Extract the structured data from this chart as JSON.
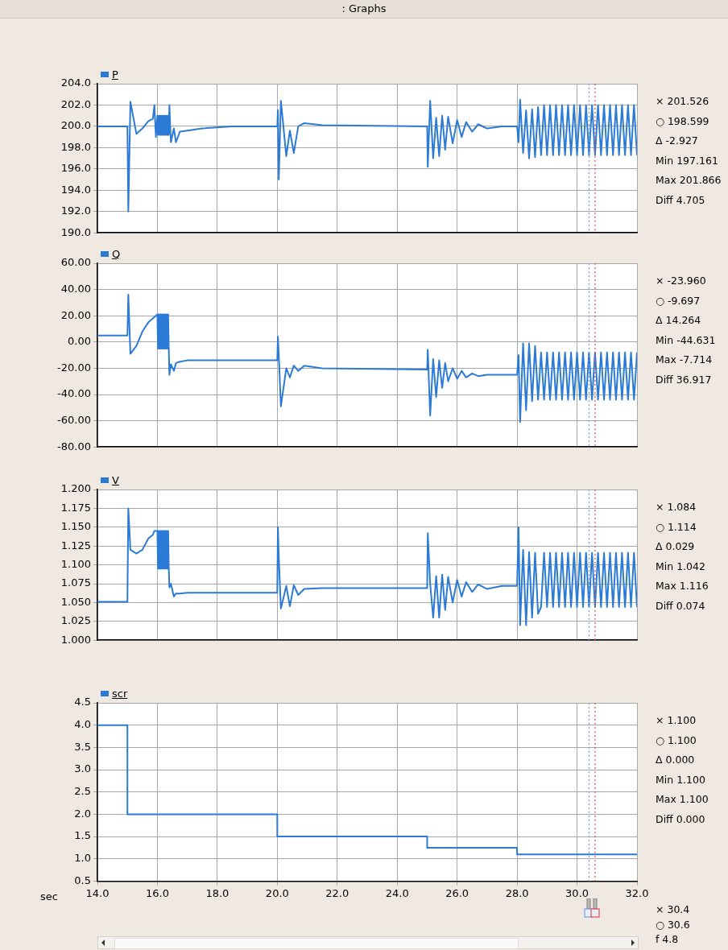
{
  "chart_data": [
    {
      "type": "line",
      "title": ": Graphs",
      "x": [
        14,
        15,
        15.03,
        15.1,
        15.3,
        15.5,
        15.7,
        15.85,
        15.9,
        15.95,
        16,
        16.02,
        16.04,
        16.06,
        16.08,
        16.1,
        16.12,
        16.14,
        16.16,
        16.18,
        16.2,
        16.22,
        16.24,
        16.26,
        16.28,
        16.3,
        16.32,
        16.34,
        16.36,
        16.38,
        16.4,
        16.45,
        16.55,
        16.62,
        16.75,
        17,
        17.5,
        18.5,
        20,
        20.02,
        20.05,
        20.12,
        20.3,
        20.42,
        20.55,
        20.7,
        20.9,
        21.5,
        25,
        25.02,
        25.1,
        25.2,
        25.3,
        25.4,
        25.5,
        25.6,
        25.7,
        25.85,
        26,
        26.15,
        26.3,
        26.5,
        26.7,
        27,
        27.5,
        28,
        28.05,
        28.1,
        28.2,
        28.3,
        28.4,
        28.5,
        28.6,
        28.7,
        28.8,
        28.9,
        29,
        29.1,
        29.2,
        29.3,
        29.4,
        29.5,
        29.6,
        29.7,
        29.8,
        29.9,
        30,
        30.1,
        30.2,
        30.3,
        30.4,
        30.5,
        30.6,
        30.7,
        30.8,
        30.9,
        31,
        31.1,
        31.2,
        31.3,
        31.4,
        31.5,
        31.6,
        31.7,
        31.8,
        31.9,
        32
      ],
      "series": [
        {
          "name": "P",
          "color": "#2b7bd6",
          "values": [
            200,
            200,
            192,
            202.3,
            199.3,
            199.8,
            200.5,
            200.7,
            202,
            199,
            201,
            199.2,
            201,
            199.2,
            201,
            199.2,
            201,
            199.2,
            201,
            199.2,
            201,
            199.2,
            201,
            199.2,
            201,
            199.2,
            201,
            199.2,
            201,
            199.2,
            202,
            198.5,
            199.8,
            198.5,
            199.5,
            199.6,
            199.8,
            200,
            200,
            201.5,
            195,
            202.4,
            197.2,
            199.6,
            197.5,
            200,
            200.3,
            200.1,
            200,
            196.2,
            202.4,
            197,
            200.8,
            197.2,
            201,
            197.8,
            200.9,
            198.4,
            200.6,
            199,
            200.4,
            199.5,
            200.2,
            199.8,
            200,
            200,
            198.5,
            202.5,
            197.5,
            201.5,
            197,
            201.6,
            197.1,
            201.8,
            197.3,
            202,
            197.3,
            202,
            197.3,
            202,
            197.3,
            202,
            197.3,
            202,
            197.3,
            202,
            197.3,
            202,
            197.3,
            202,
            197.3,
            202,
            197.3,
            202,
            197.3,
            202,
            197.3,
            202,
            197.3,
            202,
            197.3,
            202,
            197.3,
            202,
            197.3,
            202,
            197.3
          ]
        }
      ],
      "xlim": [
        14,
        32
      ],
      "ylim": [
        190,
        204
      ],
      "yticks": [
        {
          "value": 190,
          "label": "190.0"
        },
        {
          "value": 192,
          "label": "192.0"
        },
        {
          "value": 194,
          "label": "194.0"
        },
        {
          "value": 196,
          "label": "196.0"
        },
        {
          "value": 198,
          "label": "198.0"
        },
        {
          "value": 200,
          "label": "200.0"
        },
        {
          "value": 202,
          "label": "202.0"
        },
        {
          "value": 204,
          "label": "204.0"
        }
      ],
      "tick_labels": "y",
      "grid": true,
      "legend": "top left",
      "marker": "none",
      "line_style": "solid",
      "ref_lines": [
        {
          "axis": "x",
          "value": 30.4,
          "color": "#7a9cf0",
          "line_style": "dotted"
        },
        {
          "axis": "x",
          "value": 30.6,
          "color": "#e05050",
          "line_style": "dotted"
        }
      ],
      "xticks": [
        14,
        16,
        18,
        20,
        22,
        24,
        26,
        28,
        30,
        32
      ],
      "annotations": [
        "× 201.526",
        "○ 198.599",
        "Δ -2.927",
        "Min 197.161",
        "Max 201.866",
        "Diff 4.705"
      ]
    },
    {
      "type": "line",
      "x": [
        14,
        15,
        15.03,
        15.1,
        15.3,
        15.5,
        15.7,
        15.85,
        15.9,
        15.95,
        16,
        16.02,
        16.04,
        16.06,
        16.08,
        16.1,
        16.12,
        16.14,
        16.16,
        16.18,
        16.2,
        16.22,
        16.24,
        16.26,
        16.28,
        16.3,
        16.32,
        16.34,
        16.36,
        16.38,
        16.4,
        16.45,
        16.55,
        16.62,
        16.75,
        17,
        17.5,
        18.5,
        20,
        20.02,
        20.05,
        20.12,
        20.3,
        20.42,
        20.55,
        20.7,
        20.9,
        21.5,
        25,
        25.02,
        25.1,
        25.2,
        25.3,
        25.4,
        25.5,
        25.6,
        25.7,
        25.85,
        26,
        26.15,
        26.3,
        26.5,
        26.7,
        27,
        27.5,
        28,
        28.05,
        28.1,
        28.2,
        28.3,
        28.4,
        28.5,
        28.6,
        28.7,
        28.8,
        28.9,
        29,
        29.1,
        29.2,
        29.3,
        29.4,
        29.5,
        29.6,
        29.7,
        29.8,
        29.9,
        30,
        30.1,
        30.2,
        30.3,
        30.4,
        30.5,
        30.6,
        30.7,
        30.8,
        30.9,
        31,
        31.1,
        31.2,
        31.3,
        31.4,
        31.5,
        31.6,
        31.7,
        31.8,
        31.9,
        32
      ],
      "series": [
        {
          "name": "Q",
          "color": "#2b7bd6",
          "values": [
            5,
            5,
            36,
            -9,
            -3,
            8,
            15,
            18,
            19,
            20,
            21,
            -5,
            21,
            -5,
            21,
            -5,
            21,
            -5,
            21,
            -5,
            21,
            -5,
            21,
            -5,
            21,
            -5,
            21,
            -5,
            21,
            -5,
            -25,
            -17,
            -22,
            -16,
            -15,
            -14,
            -14,
            -14,
            -14,
            4,
            -10,
            -49,
            -20,
            -27,
            -18,
            -22,
            -18,
            -20,
            -21,
            -6,
            -56,
            -13,
            -42,
            -14,
            -35,
            -16,
            -30,
            -20,
            -28,
            -22,
            -27,
            -24,
            -26,
            -25,
            -25,
            -25,
            -10,
            -61,
            -1,
            -52,
            -1,
            -45,
            -3,
            -44,
            -8,
            -44,
            -8,
            -44,
            -8,
            -44,
            -8,
            -44,
            -8,
            -44,
            -8,
            -44,
            -8,
            -44,
            -8,
            -44,
            -8,
            -44,
            -8,
            -44,
            -8,
            -44,
            -8,
            -44,
            -8,
            -44,
            -8,
            -44,
            -8,
            -44,
            -8,
            -44,
            -8
          ]
        }
      ],
      "xlim": [
        14,
        32
      ],
      "xticks": [
        14,
        16,
        18,
        20,
        22,
        24,
        26,
        28,
        30,
        32
      ],
      "ylim": [
        -80,
        60
      ],
      "yticks": [
        {
          "value": -80,
          "label": "-80.00"
        },
        {
          "value": -60,
          "label": "-60.00"
        },
        {
          "value": -40,
          "label": "-40.00"
        },
        {
          "value": -20,
          "label": "-20.00"
        },
        {
          "value": 0,
          "label": "0.00"
        },
        {
          "value": 20,
          "label": "20.00"
        },
        {
          "value": 40,
          "label": "40.00"
        },
        {
          "value": 60,
          "label": "60.00"
        }
      ],
      "tick_labels": "y",
      "grid": true,
      "legend": "top left",
      "marker": "none",
      "line_style": "solid",
      "ref_lines": [
        {
          "axis": "x",
          "value": 30.4,
          "color": "#7a9cf0",
          "line_style": "dotted"
        },
        {
          "axis": "x",
          "value": 30.6,
          "color": "#e05050",
          "line_style": "dotted"
        }
      ],
      "annotations": [
        "× -23.960",
        "○ -9.697",
        "Δ 14.264",
        "Min -44.631",
        "Max -7.714",
        "Diff 36.917"
      ]
    },
    {
      "type": "line",
      "x": [
        14,
        15,
        15.03,
        15.1,
        15.3,
        15.5,
        15.7,
        15.85,
        15.9,
        15.95,
        16,
        16.02,
        16.04,
        16.06,
        16.08,
        16.1,
        16.12,
        16.14,
        16.16,
        16.18,
        16.2,
        16.22,
        16.24,
        16.26,
        16.28,
        16.3,
        16.32,
        16.34,
        16.36,
        16.38,
        16.4,
        16.45,
        16.55,
        16.62,
        16.75,
        17,
        17.5,
        18.5,
        20,
        20.02,
        20.05,
        20.12,
        20.3,
        20.42,
        20.55,
        20.7,
        20.9,
        21.5,
        25,
        25.02,
        25.1,
        25.2,
        25.3,
        25.4,
        25.5,
        25.6,
        25.7,
        25.85,
        26,
        26.15,
        26.3,
        26.5,
        26.7,
        27,
        27.5,
        28,
        28.05,
        28.1,
        28.2,
        28.3,
        28.4,
        28.5,
        28.6,
        28.7,
        28.8,
        28.9,
        29,
        29.1,
        29.2,
        29.3,
        29.4,
        29.5,
        29.6,
        29.7,
        29.8,
        29.9,
        30,
        30.1,
        30.2,
        30.3,
        30.4,
        30.5,
        30.6,
        30.7,
        30.8,
        30.9,
        31,
        31.1,
        31.2,
        31.3,
        31.4,
        31.5,
        31.6,
        31.7,
        31.8,
        31.9,
        32
      ],
      "series": [
        {
          "name": "V",
          "color": "#2b7bd6",
          "values": [
            1.051,
            1.051,
            1.175,
            1.12,
            1.115,
            1.12,
            1.135,
            1.14,
            1.145,
            1.145,
            1.145,
            1.095,
            1.145,
            1.095,
            1.145,
            1.095,
            1.145,
            1.095,
            1.145,
            1.095,
            1.145,
            1.095,
            1.145,
            1.095,
            1.145,
            1.095,
            1.145,
            1.095,
            1.145,
            1.095,
            1.07,
            1.075,
            1.058,
            1.062,
            1.062,
            1.063,
            1.063,
            1.063,
            1.063,
            1.15,
            1.11,
            1.042,
            1.072,
            1.045,
            1.073,
            1.06,
            1.068,
            1.069,
            1.069,
            1.142,
            1.075,
            1.03,
            1.085,
            1.03,
            1.087,
            1.04,
            1.084,
            1.05,
            1.08,
            1.058,
            1.077,
            1.064,
            1.074,
            1.068,
            1.072,
            1.072,
            1.15,
            1.02,
            1.12,
            1.02,
            1.117,
            1.03,
            1.116,
            1.035,
            1.044,
            1.116,
            1.044,
            1.116,
            1.044,
            1.116,
            1.044,
            1.116,
            1.044,
            1.116,
            1.044,
            1.116,
            1.044,
            1.116,
            1.044,
            1.116,
            1.044,
            1.116,
            1.044,
            1.116,
            1.044,
            1.116,
            1.044,
            1.116,
            1.044,
            1.116,
            1.044,
            1.116,
            1.044,
            1.116,
            1.044,
            1.116,
            1.044
          ]
        }
      ],
      "xlim": [
        14,
        32
      ],
      "xticks": [
        14,
        16,
        18,
        20,
        22,
        24,
        26,
        28,
        30,
        32
      ],
      "ylim": [
        1,
        1.2
      ],
      "yticks": [
        {
          "value": 1,
          "label": "1.000"
        },
        {
          "value": 1.025,
          "label": "1.025"
        },
        {
          "value": 1.05,
          "label": "1.050"
        },
        {
          "value": 1.075,
          "label": "1.075"
        },
        {
          "value": 1.1,
          "label": "1.100"
        },
        {
          "value": 1.125,
          "label": "1.125"
        },
        {
          "value": 1.15,
          "label": "1.150"
        },
        {
          "value": 1.175,
          "label": "1.175"
        },
        {
          "value": 1.2,
          "label": "1.200"
        }
      ],
      "tick_labels": "y",
      "grid": true,
      "legend": "top left",
      "marker": "none",
      "line_style": "solid",
      "ref_lines": [
        {
          "axis": "x",
          "value": 30.4,
          "color": "#7a9cf0",
          "line_style": "dotted"
        },
        {
          "axis": "x",
          "value": 30.6,
          "color": "#e05050",
          "line_style": "dotted"
        }
      ],
      "annotations": [
        "× 1.084",
        "○ 1.114",
        "Δ 0.029",
        "Min 1.042",
        "Max 1.116",
        "Diff 0.074"
      ]
    },
    {
      "type": "step",
      "xlabel": "sec",
      "x": [
        14,
        15,
        20,
        25,
        28,
        32
      ],
      "series": [
        {
          "name": "scr",
          "color": "#2b7bd6",
          "values": [
            4,
            2,
            1.5,
            1.25,
            1.1,
            1.1
          ]
        }
      ],
      "xlim": [
        14,
        32
      ],
      "xticks": [
        {
          "value": 14,
          "label": "14.0"
        },
        {
          "value": 16,
          "label": "16.0"
        },
        {
          "value": 18,
          "label": "18.0"
        },
        {
          "value": 20,
          "label": "20.0"
        },
        {
          "value": 22,
          "label": "22.0"
        },
        {
          "value": 24,
          "label": "24.0"
        },
        {
          "value": 26,
          "label": "26.0"
        },
        {
          "value": 28,
          "label": "28.0"
        },
        {
          "value": 30,
          "label": "30.0"
        },
        {
          "value": 32,
          "label": "32.0"
        }
      ],
      "ylim": [
        0.5,
        4.5
      ],
      "yticks": [
        0.5,
        {
          "value": 1,
          "label": "1.0"
        },
        1.5,
        {
          "value": 2,
          "label": "2.0"
        },
        2.5,
        {
          "value": 3,
          "label": "3.0"
        },
        3.5,
        {
          "value": 4,
          "label": "4.0"
        },
        4.5
      ],
      "grid": true,
      "legend": "top left",
      "marker": "none",
      "line_style": "solid",
      "ref_lines": [
        {
          "axis": "x",
          "value": 30.4,
          "color": "#7a9cf0",
          "line_style": "dotted"
        },
        {
          "axis": "x",
          "value": 30.6,
          "color": "#e05050",
          "line_style": "dotted"
        }
      ],
      "annotations": [
        "× 1.100",
        "○ 1.100",
        "Δ 0.000",
        "Min 1.100",
        "Max 1.100",
        "Diff 0.000",
        "× 30.4",
        "○ 30.6",
        "f 4.8"
      ]
    }
  ]
}
